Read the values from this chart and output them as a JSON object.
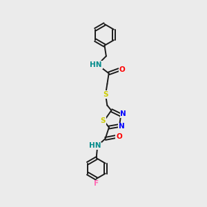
{
  "background_color": "#ebebeb",
  "bond_color": "#1a1a1a",
  "atom_colors": {
    "N": "#0000ff",
    "O": "#ff0000",
    "S": "#cccc00",
    "F": "#ff69b4",
    "NH": "#008b8b",
    "C": "#1a1a1a"
  },
  "bond_width": 1.4,
  "figsize": [
    3.0,
    3.0
  ],
  "dpi": 100,
  "xlim": [
    0,
    10
  ],
  "ylim": [
    0,
    10
  ]
}
